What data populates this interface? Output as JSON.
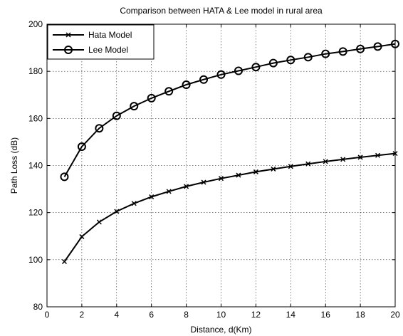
{
  "chart_data": {
    "type": "line",
    "title": "Comparison between HATA & Lee model in rural area",
    "xlabel": "Distance, d(Km)",
    "ylabel": "Path Loss (dB)",
    "xlim": [
      0,
      20
    ],
    "ylim": [
      80,
      200
    ],
    "xticks": [
      0,
      2,
      4,
      6,
      8,
      10,
      12,
      14,
      16,
      18,
      20
    ],
    "yticks": [
      80,
      100,
      120,
      140,
      160,
      180,
      200
    ],
    "grid": true,
    "legend_position": "top-left",
    "line_color": "#000000",
    "x": [
      1,
      2,
      3,
      4,
      5,
      6,
      7,
      8,
      9,
      10,
      11,
      12,
      13,
      14,
      15,
      16,
      17,
      18,
      19,
      20
    ],
    "series": [
      {
        "name": "Hata Model",
        "marker": "x",
        "values": [
          99.2,
          109.8,
          116.0,
          120.5,
          123.9,
          126.7,
          129.0,
          131.1,
          132.9,
          134.5,
          135.9,
          137.3,
          138.5,
          139.6,
          140.7,
          141.7,
          142.6,
          143.5,
          144.3,
          145.1
        ]
      },
      {
        "name": "Lee Model",
        "marker": "circle",
        "values": [
          135.2,
          148.0,
          155.8,
          161.1,
          165.2,
          168.6,
          171.5,
          174.3,
          176.5,
          178.6,
          180.2,
          181.8,
          183.5,
          184.8,
          186.0,
          187.4,
          188.4,
          189.5,
          190.5,
          191.6
        ]
      }
    ]
  }
}
